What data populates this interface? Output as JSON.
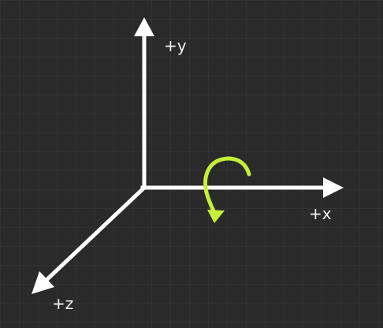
{
  "axes": {
    "y_label": "+y",
    "x_label": "+x",
    "z_label": "+z"
  },
  "colors": {
    "background": "#2a2a2a",
    "axis": "#ffffff",
    "rotation_arrow": "#c6ee3a"
  },
  "icons": {
    "rotation": "curved-arrow-icon"
  }
}
